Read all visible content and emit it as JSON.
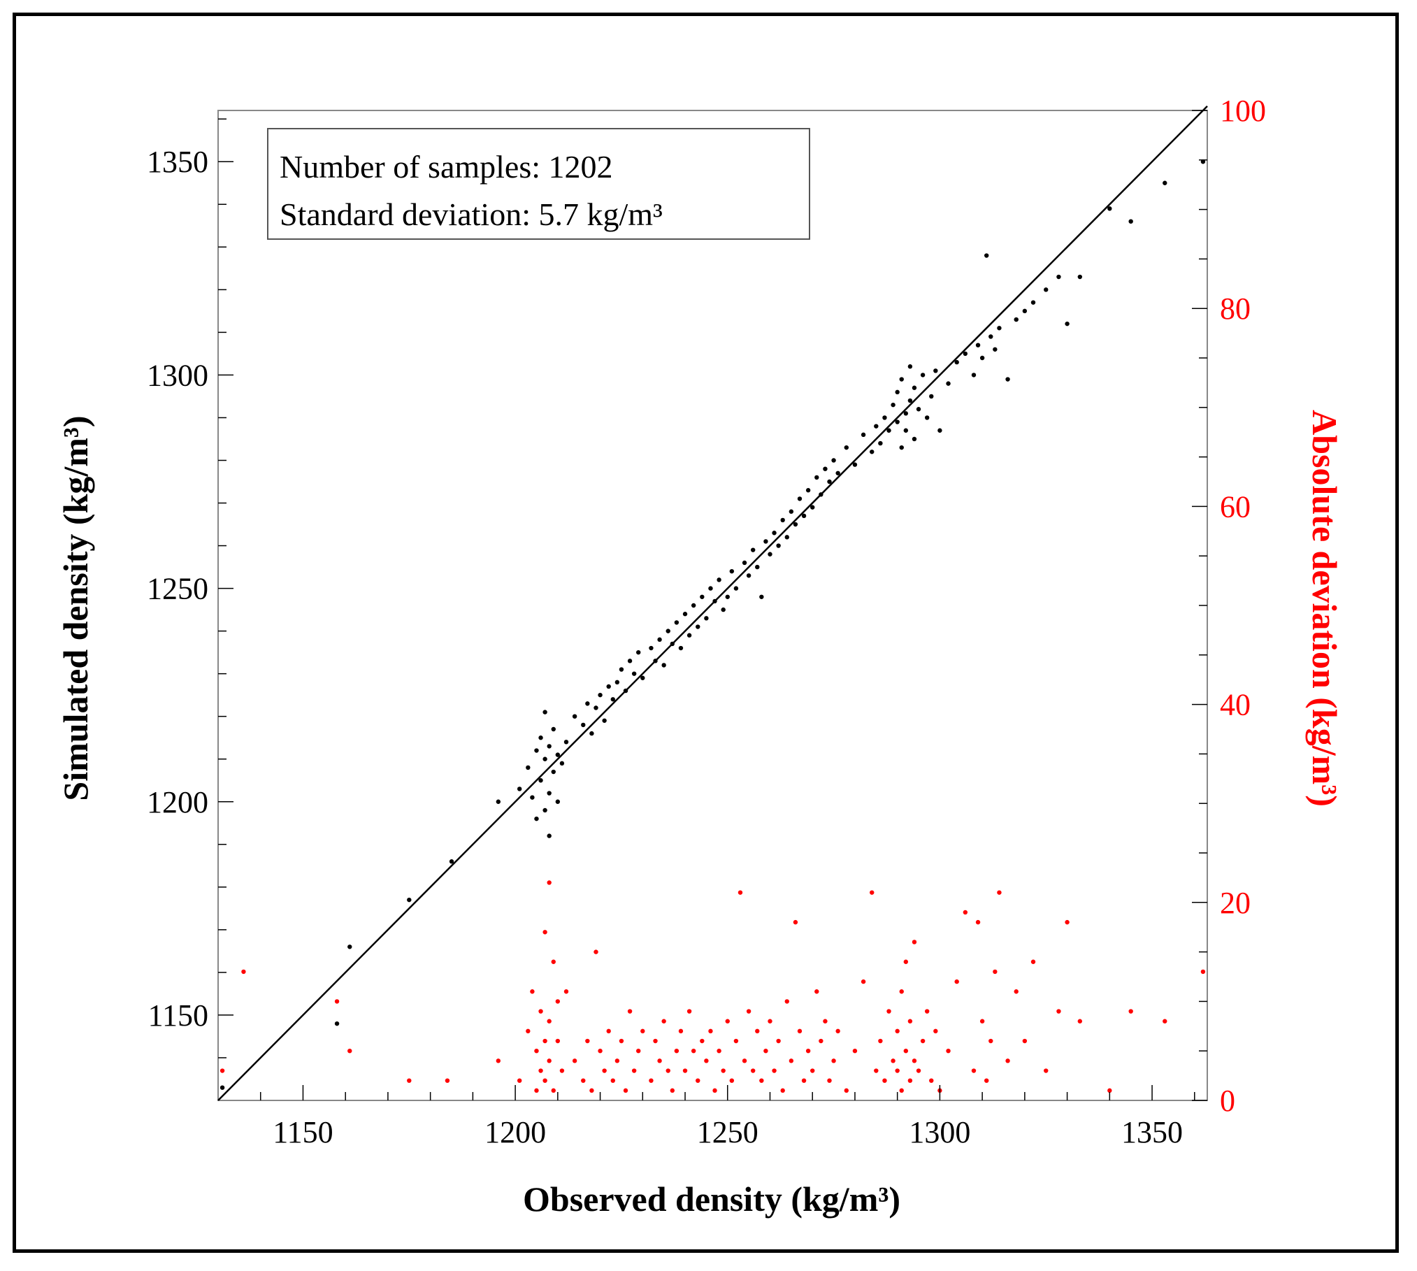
{
  "chart_data": {
    "type": "scatter",
    "xlabel": "Observed density (kg/m³)",
    "ylabel": "Simulated density (kg/m³)",
    "y2label": "Absolute deviation (kg/m³)",
    "xlim": [
      1130,
      1363
    ],
    "ylim": [
      1130,
      1362
    ],
    "y2lim": [
      0,
      100
    ],
    "xticks": [
      1150,
      1200,
      1250,
      1300,
      1350
    ],
    "yticks": [
      1150,
      1200,
      1250,
      1300,
      1350
    ],
    "y2ticks": [
      0,
      20,
      40,
      60,
      80,
      100
    ],
    "annotation": {
      "samples": "Number of samples: 1202",
      "std": "Standard deviation: 5.7 kg/m³"
    },
    "colors": {
      "simulated": "#000000",
      "deviation": "#ff0000",
      "diagonal": "#000000"
    },
    "reference_line": {
      "from": [
        1130,
        1130
      ],
      "to": [
        1363,
        1363
      ]
    },
    "series": [
      {
        "name": "Simulated density",
        "axis": "left",
        "x": [
          1131,
          1158,
          1161,
          1175,
          1185,
          1196,
          1201,
          1203,
          1204,
          1205,
          1205,
          1206,
          1206,
          1207,
          1207,
          1207,
          1208,
          1208,
          1208,
          1209,
          1209,
          1210,
          1210,
          1211,
          1212,
          1214,
          1216,
          1217,
          1218,
          1219,
          1220,
          1221,
          1222,
          1223,
          1224,
          1225,
          1226,
          1227,
          1228,
          1229,
          1230,
          1232,
          1233,
          1234,
          1235,
          1236,
          1237,
          1238,
          1239,
          1240,
          1241,
          1242,
          1243,
          1244,
          1245,
          1246,
          1247,
          1248,
          1249,
          1250,
          1251,
          1252,
          1254,
          1255,
          1256,
          1257,
          1258,
          1259,
          1260,
          1261,
          1262,
          1263,
          1264,
          1265,
          1266,
          1267,
          1268,
          1269,
          1270,
          1271,
          1272,
          1273,
          1274,
          1275,
          1276,
          1278,
          1280,
          1282,
          1284,
          1285,
          1286,
          1287,
          1288,
          1289,
          1290,
          1290,
          1291,
          1291,
          1292,
          1292,
          1293,
          1293,
          1294,
          1294,
          1295,
          1296,
          1297,
          1298,
          1299,
          1300,
          1302,
          1304,
          1306,
          1308,
          1309,
          1310,
          1311,
          1312,
          1313,
          1314,
          1316,
          1318,
          1320,
          1322,
          1325,
          1328,
          1330,
          1333,
          1340,
          1345,
          1353,
          1362
        ],
        "y": [
          1133,
          1148,
          1166,
          1177,
          1186,
          1200,
          1203,
          1208,
          1201,
          1212,
          1196,
          1205,
          1215,
          1198,
          1210,
          1221,
          1202,
          1213,
          1192,
          1207,
          1217,
          1200,
          1211,
          1209,
          1214,
          1220,
          1218,
          1223,
          1216,
          1222,
          1225,
          1219,
          1227,
          1224,
          1228,
          1231,
          1226,
          1233,
          1230,
          1235,
          1229,
          1236,
          1233,
          1238,
          1232,
          1240,
          1237,
          1242,
          1236,
          1244,
          1239,
          1246,
          1241,
          1248,
          1243,
          1250,
          1247,
          1252,
          1245,
          1248,
          1254,
          1250,
          1256,
          1253,
          1259,
          1255,
          1248,
          1261,
          1258,
          1263,
          1260,
          1266,
          1262,
          1268,
          1265,
          1271,
          1267,
          1273,
          1269,
          1276,
          1272,
          1278,
          1275,
          1280,
          1277,
          1283,
          1279,
          1286,
          1282,
          1288,
          1284,
          1290,
          1287,
          1293,
          1289,
          1296,
          1283,
          1299,
          1291,
          1287,
          1294,
          1302,
          1285,
          1297,
          1292,
          1300,
          1290,
          1295,
          1301,
          1287,
          1298,
          1303,
          1305,
          1300,
          1307,
          1304,
          1328,
          1309,
          1306,
          1311,
          1299,
          1313,
          1315,
          1317,
          1320,
          1323,
          1312,
          1323,
          1339,
          1336,
          1345,
          1350
        ]
      },
      {
        "name": "Absolute deviation",
        "axis": "right",
        "x": [
          1131,
          1136,
          1158,
          1161,
          1175,
          1184,
          1196,
          1201,
          1203,
          1204,
          1205,
          1205,
          1206,
          1206,
          1207,
          1207,
          1207,
          1208,
          1208,
          1208,
          1209,
          1209,
          1210,
          1210,
          1211,
          1212,
          1214,
          1216,
          1217,
          1218,
          1219,
          1220,
          1221,
          1222,
          1223,
          1224,
          1225,
          1226,
          1227,
          1228,
          1229,
          1230,
          1232,
          1233,
          1234,
          1235,
          1236,
          1237,
          1238,
          1239,
          1240,
          1241,
          1242,
          1243,
          1244,
          1245,
          1246,
          1247,
          1248,
          1249,
          1250,
          1251,
          1252,
          1253,
          1254,
          1255,
          1256,
          1257,
          1258,
          1259,
          1260,
          1261,
          1262,
          1263,
          1264,
          1265,
          1266,
          1267,
          1268,
          1269,
          1270,
          1271,
          1272,
          1273,
          1274,
          1275,
          1276,
          1278,
          1280,
          1282,
          1284,
          1285,
          1286,
          1287,
          1288,
          1289,
          1290,
          1290,
          1291,
          1291,
          1292,
          1292,
          1293,
          1293,
          1294,
          1294,
          1295,
          1296,
          1297,
          1298,
          1299,
          1300,
          1302,
          1304,
          1306,
          1308,
          1309,
          1310,
          1311,
          1312,
          1313,
          1314,
          1316,
          1318,
          1320,
          1322,
          1325,
          1328,
          1330,
          1333,
          1340,
          1345,
          1353,
          1362
        ],
        "y": [
          3,
          13,
          10,
          5,
          2,
          2,
          4,
          2,
          7,
          11,
          1,
          5,
          9,
          3,
          17,
          6,
          2,
          22,
          8,
          4,
          14,
          1,
          6,
          10,
          3,
          11,
          4,
          2,
          6,
          1,
          15,
          5,
          3,
          7,
          2,
          4,
          6,
          1,
          9,
          3,
          5,
          7,
          2,
          6,
          4,
          8,
          3,
          1,
          5,
          7,
          3,
          9,
          5,
          2,
          6,
          4,
          7,
          1,
          5,
          3,
          8,
          2,
          6,
          21,
          4,
          9,
          3,
          7,
          2,
          5,
          8,
          3,
          6,
          1,
          10,
          4,
          18,
          7,
          2,
          5,
          3,
          11,
          6,
          8,
          2,
          4,
          7,
          1,
          5,
          12,
          21,
          3,
          6,
          2,
          9,
          4,
          7,
          3,
          11,
          1,
          5,
          14,
          2,
          8,
          4,
          16,
          3,
          6,
          9,
          2,
          7,
          1,
          5,
          12,
          19,
          3,
          18,
          8,
          2,
          6,
          13,
          21,
          4,
          11,
          6,
          14,
          3,
          9,
          18,
          8,
          1,
          9,
          8,
          13
        ]
      }
    ]
  }
}
